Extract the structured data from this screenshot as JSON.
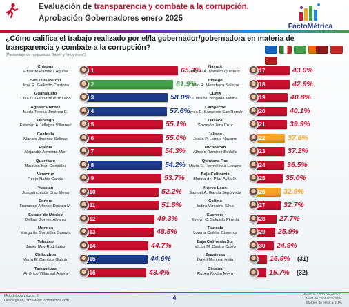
{
  "header": {
    "title_prefix": "Evaluación de ",
    "title_highlight": "transparencia y combate a la corrupción.",
    "subtitle": "Aprobación Gobernadores enero 2025",
    "logo_text": "FactoMétrica",
    "icon": "running-figure-icon"
  },
  "question": "¿Cómo califica el trabajo realizado por el/la gobernador/gobernadora en materia de transparencia y combate a la corrupción?",
  "subnote": "(Porcentaje de respuestas \"bien\" y \"muy bien\").",
  "colors": {
    "red": "#c8102e",
    "green": "#43a047",
    "blue": "#1e3a8a",
    "orange": "#f5a623",
    "morena": "#8b1a1a",
    "pan": "#1565c0",
    "pri": "#2e7d32",
    "mc": "#ef6c00",
    "pvem": "#43a047",
    "independent": "#b71c1c"
  },
  "party_icons": [
    "pan-logo-icon",
    "pri-logo-icon",
    "pvem-logo-icon",
    "mc-logo-icon",
    "morena-logo-icon",
    "pt-logo-icon",
    "other-party-icon"
  ],
  "chart_data": {
    "type": "bar",
    "title": "Aprobación Gobernadores enero 2025",
    "subtitle": "¿Cómo califica el trabajo realizado por el/la gobernador/gobernadora en materia de transparencia y combate a la corrupción?",
    "ylabel": "(Porcentaje de respuestas \"bien\" y \"muy bien\").",
    "xlim": [
      0,
      70
    ],
    "rows": [
      {
        "rank": "1",
        "state": "Chiapas",
        "governor": "Eduardo Ramírez Aguilar",
        "value": 65.3,
        "label": "65.3%",
        "color": "red"
      },
      {
        "rank": "2",
        "state": "San Luis Potosí",
        "governor": "José R. Gallardo Cardona",
        "value": 61.9,
        "label": "61.9%",
        "color": "green"
      },
      {
        "rank": "3",
        "state": "Guanajuato",
        "governor": "Libia D. García Muñoz Ledo",
        "value": 58.0,
        "label": "58.0%",
        "color": "blue"
      },
      {
        "rank": "4",
        "state": "Aguascalientes",
        "governor": "María Teresa Jiménez E.",
        "value": 57.6,
        "label": "57.6%",
        "color": "blue"
      },
      {
        "rank": "5",
        "state": "Durango",
        "governor": "Esteban A. Villegas Villarreal",
        "value": 55.1,
        "label": "55.1%",
        "color": "red"
      },
      {
        "rank": "6",
        "state": "Coahuila",
        "governor": "Manolo Jiménez Salinas",
        "value": 55.0,
        "label": "55.0%",
        "color": "red"
      },
      {
        "rank": "7",
        "state": "Puebla",
        "governor": "Alejandro Armenta Mier",
        "value": 54.3,
        "label": "54.3%",
        "color": "red"
      },
      {
        "rank": "8",
        "state": "Querétaro",
        "governor": "Mauricio Kuri González",
        "value": 54.2,
        "label": "54.2%",
        "color": "blue"
      },
      {
        "rank": "9",
        "state": "Veracruz",
        "governor": "Rocío Nahle García",
        "value": 53.7,
        "label": "53.7%",
        "color": "red"
      },
      {
        "rank": "10",
        "state": "Yucatán",
        "governor": "Joaquín Jesús Díaz Mena",
        "value": 52.2,
        "label": "52.2%",
        "color": "red"
      },
      {
        "rank": "11",
        "state": "Sonora",
        "governor": "Francisco Alfonso Durazo M.",
        "value": 51.8,
        "label": "51.8%",
        "color": "red"
      },
      {
        "rank": "12",
        "state": "Estado de México",
        "governor": "Delfina Gómez Álvarez",
        "value": 49.3,
        "label": "49.3%",
        "color": "red"
      },
      {
        "rank": "13",
        "state": "Morelos",
        "governor": "Margarita González Saravia",
        "value": 48.5,
        "label": "48.5%",
        "color": "red"
      },
      {
        "rank": "14",
        "state": "Tabasco",
        "governor": "Javier May Rodríguez",
        "value": 44.7,
        "label": "44.7%",
        "color": "red"
      },
      {
        "rank": "15",
        "state": "Chihuahua",
        "governor": "María E. Campos Galván",
        "value": 44.6,
        "label": "44.6%",
        "color": "blue"
      },
      {
        "rank": "16",
        "state": "Tamaulipas",
        "governor": "Américo Villarreal Anaya",
        "value": 43.4,
        "label": "43.4%",
        "color": "red"
      },
      {
        "rank": "17",
        "state": "Nayarit",
        "governor": "Miguel Á. Navarro Quintero",
        "value": 43.0,
        "label": "43.0%",
        "color": "red"
      },
      {
        "rank": "18",
        "state": "Hidalgo",
        "governor": "Julio R. Menchaca Salazar",
        "value": 42.9,
        "label": "42.9%",
        "color": "red"
      },
      {
        "rank": "19",
        "state": "CDMX",
        "governor": "Clara M. Brugada Molina",
        "value": 40.8,
        "label": "40.8%",
        "color": "red"
      },
      {
        "rank": "20",
        "state": "Campeche",
        "governor": "Layda E. Sansores San Román",
        "value": 40.1,
        "label": "40.1%",
        "color": "red"
      },
      {
        "rank": "21",
        "state": "Oaxaca",
        "governor": "Salomón Jara Cruz",
        "value": 39.9,
        "label": "39.9%",
        "color": "red"
      },
      {
        "rank": "22",
        "state": "Jalisco",
        "governor": "Jesús P. Lemus Navarro",
        "value": 37.6,
        "label": "37.6%",
        "color": "orange"
      },
      {
        "rank": "23",
        "state": "Michoacán",
        "governor": "Alfredo Ramírez Bedolla",
        "value": 37.2,
        "label": "37.2%",
        "color": "red"
      },
      {
        "rank": "24",
        "state": "Quintana Roo",
        "governor": "María E. Hermelinda Lezama",
        "value": 36.5,
        "label": "36.5%",
        "color": "red"
      },
      {
        "rank": "25",
        "state": "Baja California",
        "governor": "Marina del Pilar Ávila O.",
        "value": 35.0,
        "label": "35.0%",
        "color": "red"
      },
      {
        "rank": "26",
        "state": "Nuevo León",
        "governor": "Samuel A. García Sepúlveda",
        "value": 32.9,
        "label": "32.9%",
        "color": "orange"
      },
      {
        "rank": "27",
        "state": "Colima",
        "governor": "Indira Vizcaíno Silva",
        "value": 32.7,
        "label": "32.7%",
        "color": "red"
      },
      {
        "rank": "28",
        "state": "Guerrero",
        "governor": "Evelyn C. Salgado Pineda",
        "value": 27.7,
        "label": "27.7%",
        "color": "red"
      },
      {
        "rank": "29",
        "state": "Tlaxcala",
        "governor": "Lorena Cuéllar Cisneros",
        "value": 25.9,
        "label": "25.9%",
        "color": "red"
      },
      {
        "rank": "30",
        "state": "Baja California Sur",
        "governor": "Víctor M. Castro Cosío",
        "value": 24.9,
        "label": "24.9%",
        "color": "red"
      },
      {
        "rank": "",
        "state": "Zacatecas",
        "governor": "David Monreal Ávila",
        "value": 16.9,
        "label": "16.9%",
        "color": "red",
        "extra": "(31)"
      },
      {
        "rank": "",
        "state": "Sinaloa",
        "governor": "Rubén Rocha Moya",
        "value": 15.7,
        "label": "15.7%",
        "color": "red",
        "extra": "(32)"
      }
    ]
  },
  "footer": {
    "left_line1": "Metodología página: 6",
    "left_line2": "Descarga en: http://www.factometrica.com",
    "page": "4",
    "right_line1": "Muestra: 1,000 por estado.",
    "right_line2": "Nivel de Confianza: 95%",
    "right_line3": "Margen de error: ± 3.1%"
  }
}
